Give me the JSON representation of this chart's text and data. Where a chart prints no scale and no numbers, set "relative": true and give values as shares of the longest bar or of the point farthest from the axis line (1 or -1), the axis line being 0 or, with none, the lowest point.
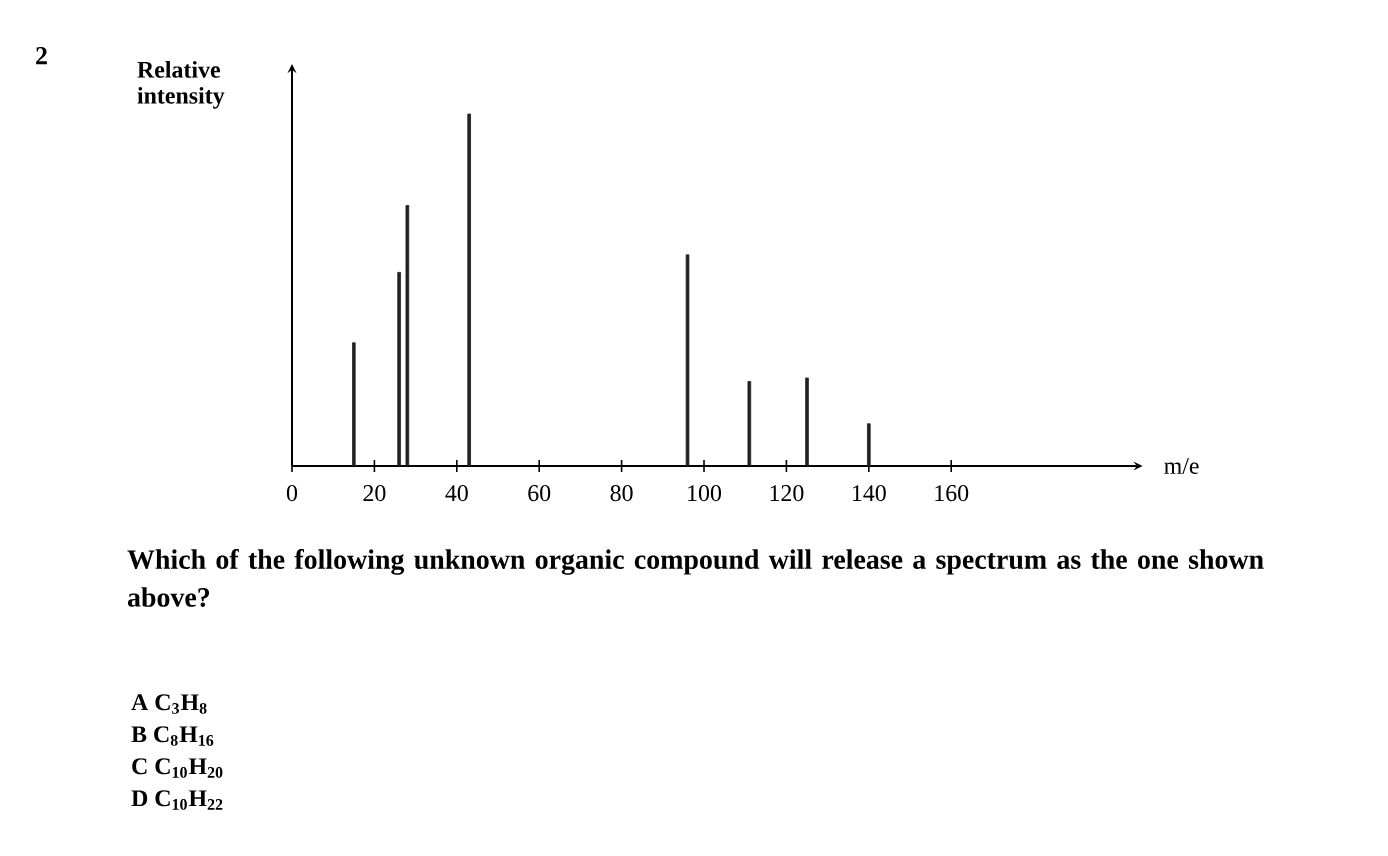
{
  "chart_data": {
    "type": "bar",
    "relative": true,
    "xlabel": "m/e",
    "ylabel": "Relative intensity",
    "color": "#222222",
    "x": [
      15,
      26,
      28,
      43,
      96,
      111,
      125,
      140
    ],
    "values": [
      0.35,
      0.55,
      0.74,
      1.0,
      0.6,
      0.24,
      0.25,
      0.12
    ],
    "xlim": [
      0,
      205
    ],
    "xticks": [
      0,
      20,
      40,
      60,
      80,
      100,
      120,
      140,
      160
    ],
    "annotations": [
      "2",
      "Which of the following unknown organic compound will release a spectrum as the one shown above?",
      "A  C$_{3}$H$_{8}$",
      "B  C$_{8}$H$_{16}$",
      "C  C$_{10}$H$_{20}$",
      "D  C$_{10}$H$_{22}$"
    ]
  }
}
